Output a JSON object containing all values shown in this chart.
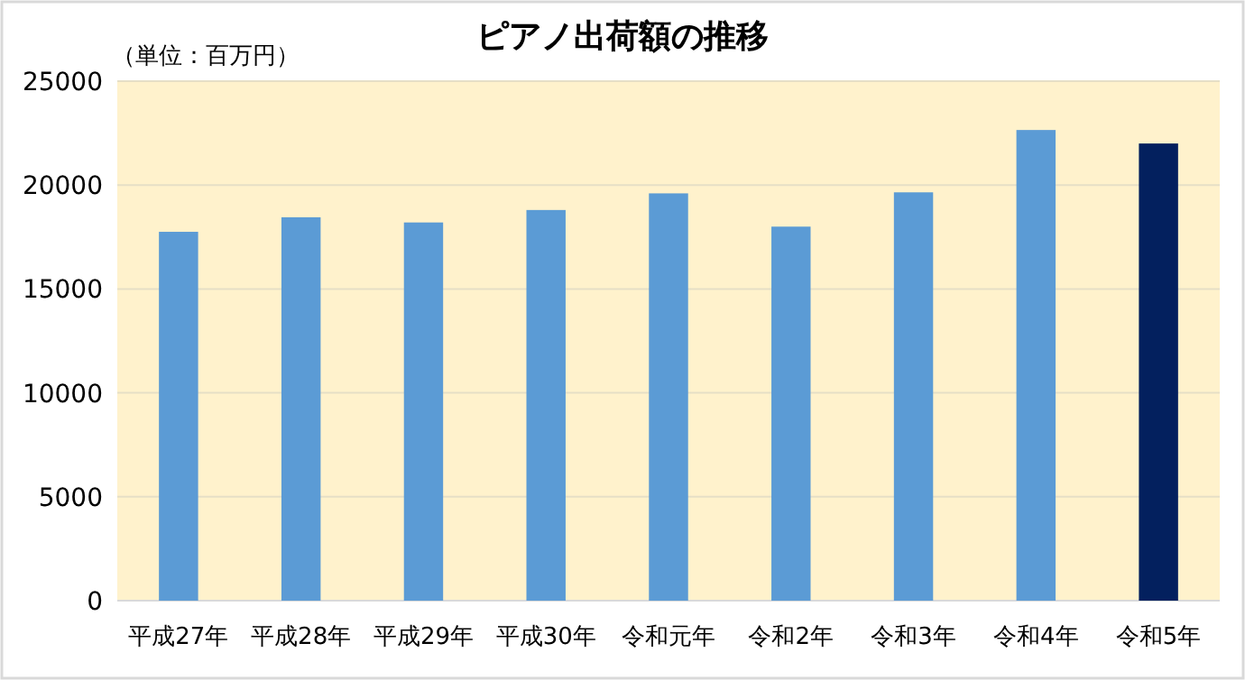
{
  "chart_data": {
    "type": "bar",
    "title": "ピアノ出荷額の推移",
    "annotations": [
      "（単位：百万円）"
    ],
    "categories": [
      "平成27年",
      "平成28年",
      "平成29年",
      "平成30年",
      "令和元年",
      "令和2年",
      "令和3年",
      "令和4年",
      "令和5年"
    ],
    "values": [
      17750,
      18450,
      18200,
      18800,
      19600,
      18000,
      19650,
      22650,
      22000
    ],
    "colors": [
      "#5b9bd5",
      "#5b9bd5",
      "#5b9bd5",
      "#5b9bd5",
      "#5b9bd5",
      "#5b9bd5",
      "#5b9bd5",
      "#5b9bd5",
      "#03205e"
    ],
    "ylim": [
      0,
      25000
    ],
    "yticks": [
      0,
      5000,
      10000,
      15000,
      20000,
      25000
    ],
    "grid": "y"
  }
}
